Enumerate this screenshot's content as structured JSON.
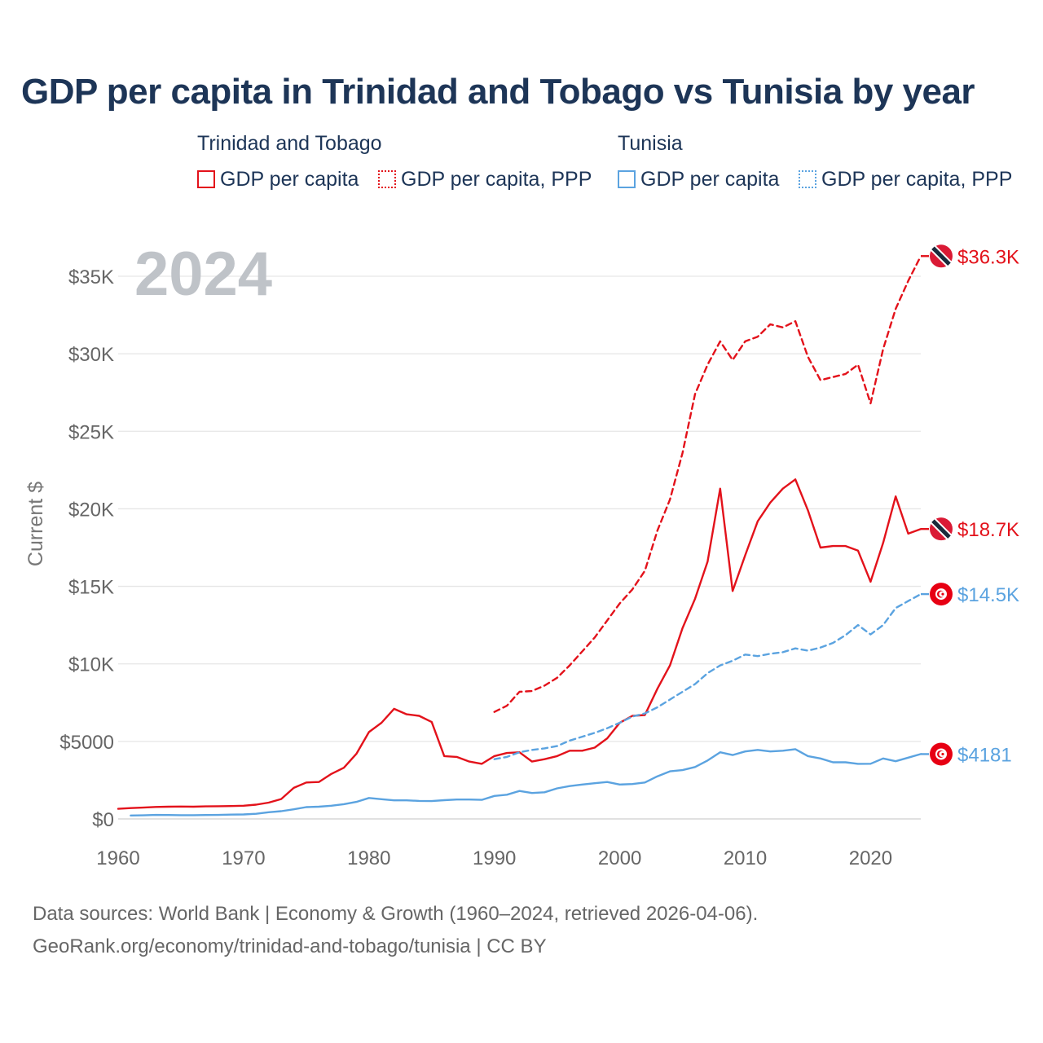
{
  "title": "GDP per capita in Trinidad and Tobago vs Tunisia by year",
  "legend": {
    "groups": [
      {
        "name": "Trinidad and Tobago",
        "color": "#e3121b",
        "items": [
          {
            "label": "GDP per capita",
            "style": "solid"
          },
          {
            "label": "GDP per capita, PPP",
            "style": "dotted"
          }
        ]
      },
      {
        "name": "Tunisia",
        "color": "#5ba3e0",
        "items": [
          {
            "label": "GDP per capita",
            "style": "solid"
          },
          {
            "label": "GDP per capita, PPP",
            "style": "dotted"
          }
        ]
      }
    ]
  },
  "year_label": "2024",
  "footer": {
    "line1": "Data sources: World Bank | Economy & Growth (1960–2024, retrieved 2026-04-06).",
    "line2": "GeoRank.org/economy/trinidad-and-tobago/tunisia | CC BY"
  },
  "chart_data": {
    "type": "line",
    "title": "GDP per capita in Trinidad and Tobago vs Tunisia by year",
    "ylabel": "Current $",
    "xlabel": "",
    "xlim": [
      1960,
      2024
    ],
    "ylim": [
      0,
      37000
    ],
    "grid": true,
    "x_ticks": [
      1960,
      1970,
      1980,
      1990,
      2000,
      2010,
      2020
    ],
    "x_tick_labels": [
      "1960",
      "1970",
      "1980",
      "1990",
      "2000",
      "2010",
      "2020"
    ],
    "y_ticks": [
      0,
      5000,
      10000,
      15000,
      20000,
      25000,
      30000,
      35000
    ],
    "y_tick_labels": [
      "$0",
      "$5000",
      "$10K",
      "$15K",
      "$20K",
      "$25K",
      "$30K",
      "$35K"
    ],
    "series": [
      {
        "name": "Trinidad and Tobago GDP per capita, PPP",
        "country": "Trinidad and Tobago",
        "color": "#e3121b",
        "dash": "dashed",
        "end_label": "$36.3K",
        "x": [
          1990,
          1991,
          1992,
          1993,
          1994,
          1995,
          1996,
          1997,
          1998,
          1999,
          2000,
          2001,
          2002,
          2003,
          2004,
          2005,
          2006,
          2007,
          2008,
          2009,
          2010,
          2011,
          2012,
          2013,
          2014,
          2015,
          2016,
          2017,
          2018,
          2019,
          2020,
          2021,
          2022,
          2023,
          2024
        ],
        "values": [
          6900,
          7300,
          8200,
          8250,
          8600,
          9100,
          9900,
          10800,
          11700,
          12800,
          13900,
          14800,
          16000,
          18600,
          20600,
          23600,
          27400,
          29300,
          30800,
          29600,
          30800,
          31100,
          31900,
          31700,
          32100,
          29800,
          28300,
          28500,
          28700,
          29300,
          26800,
          30300,
          32900,
          34700,
          36300
        ]
      },
      {
        "name": "Trinidad and Tobago GDP per capita",
        "country": "Trinidad and Tobago",
        "color": "#e3121b",
        "dash": "solid",
        "end_label": "$18.7K",
        "x": [
          1960,
          1961,
          1962,
          1963,
          1964,
          1965,
          1966,
          1967,
          1968,
          1969,
          1970,
          1971,
          1972,
          1973,
          1974,
          1975,
          1976,
          1977,
          1978,
          1979,
          1980,
          1981,
          1982,
          1983,
          1984,
          1985,
          1986,
          1987,
          1988,
          1989,
          1990,
          1991,
          1992,
          1993,
          1994,
          1995,
          1996,
          1997,
          1998,
          1999,
          2000,
          2001,
          2002,
          2003,
          2004,
          2005,
          2006,
          2007,
          2008,
          2009,
          2010,
          2011,
          2012,
          2013,
          2014,
          2015,
          2016,
          2017,
          2018,
          2019,
          2020,
          2021,
          2022,
          2023,
          2024
        ],
        "values": [
          650,
          700,
          730,
          770,
          790,
          800,
          790,
          810,
          820,
          830,
          850,
          920,
          1050,
          1280,
          2000,
          2350,
          2380,
          2900,
          3300,
          4200,
          5600,
          6200,
          7100,
          6750,
          6650,
          6250,
          4050,
          4000,
          3700,
          3550,
          4050,
          4250,
          4300,
          3700,
          3850,
          4050,
          4400,
          4400,
          4600,
          5200,
          6200,
          6650,
          6700,
          8400,
          9900,
          12300,
          14200,
          16600,
          21300,
          14700,
          17000,
          19200,
          20400,
          21300,
          21900,
          19900,
          17500,
          17600,
          17600,
          17300,
          15300,
          17800,
          20800,
          18400,
          18700
        ]
      },
      {
        "name": "Tunisia GDP per capita, PPP",
        "country": "Tunisia",
        "color": "#5ba3e0",
        "dash": "dashed",
        "end_label": "$14.5K",
        "x": [
          1990,
          1991,
          1992,
          1993,
          1994,
          1995,
          1996,
          1997,
          1998,
          1999,
          2000,
          2001,
          2002,
          2003,
          2004,
          2005,
          2006,
          2007,
          2008,
          2009,
          2010,
          2011,
          2012,
          2013,
          2014,
          2015,
          2016,
          2017,
          2018,
          2019,
          2020,
          2021,
          2022,
          2023,
          2024
        ],
        "values": [
          3850,
          4000,
          4300,
          4450,
          4550,
          4700,
          5050,
          5300,
          5550,
          5850,
          6200,
          6600,
          6800,
          7200,
          7700,
          8200,
          8700,
          9400,
          9900,
          10200,
          10600,
          10500,
          10650,
          10750,
          11000,
          10850,
          11050,
          11350,
          11850,
          12500,
          11900,
          12500,
          13600,
          14050,
          14500
        ]
      },
      {
        "name": "Tunisia GDP per capita",
        "country": "Tunisia",
        "color": "#5ba3e0",
        "dash": "solid",
        "end_label": "$4181",
        "x": [
          1961,
          1962,
          1963,
          1964,
          1965,
          1966,
          1967,
          1968,
          1969,
          1970,
          1971,
          1972,
          1973,
          1974,
          1975,
          1976,
          1977,
          1978,
          1979,
          1980,
          1981,
          1982,
          1983,
          1984,
          1985,
          1986,
          1987,
          1988,
          1989,
          1990,
          1991,
          1992,
          1993,
          1994,
          1995,
          1996,
          1997,
          1998,
          1999,
          2000,
          2001,
          2002,
          2003,
          2004,
          2005,
          2006,
          2007,
          2008,
          2009,
          2010,
          2011,
          2012,
          2013,
          2014,
          2015,
          2016,
          2017,
          2018,
          2019,
          2020,
          2021,
          2022,
          2023,
          2024
        ],
        "values": [
          220,
          230,
          260,
          250,
          240,
          240,
          250,
          260,
          280,
          290,
          330,
          430,
          500,
          620,
          760,
          790,
          850,
          950,
          1100,
          1350,
          1270,
          1200,
          1200,
          1160,
          1150,
          1210,
          1250,
          1250,
          1230,
          1480,
          1560,
          1800,
          1670,
          1720,
          1970,
          2120,
          2220,
          2300,
          2380,
          2220,
          2250,
          2350,
          2750,
          3070,
          3150,
          3350,
          3770,
          4300,
          4120,
          4350,
          4450,
          4350,
          4400,
          4500,
          4050,
          3900,
          3650,
          3650,
          3550,
          3560,
          3900,
          3720,
          3950,
          4181
        ]
      }
    ]
  }
}
